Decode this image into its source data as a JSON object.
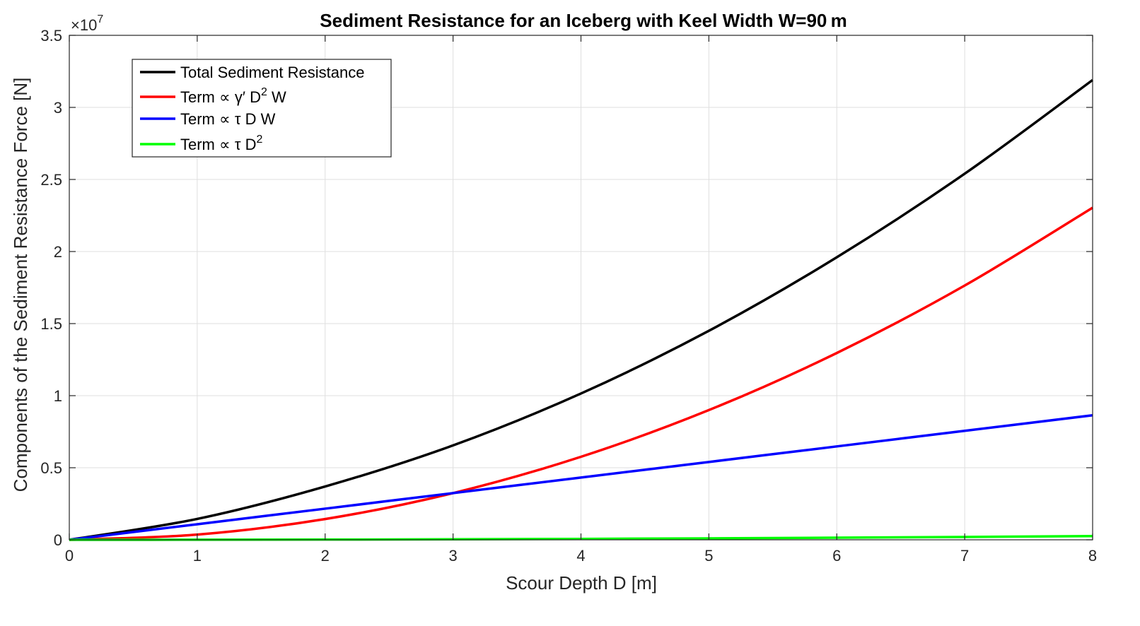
{
  "chart_data": {
    "type": "line",
    "title": "Sediment Resistance for an Iceberg with Keel Width W=90 m",
    "xlabel": "Scour Depth D [m]",
    "ylabel": "Components of the Sediment Resistance Force [N]",
    "y_exponent_label": "×10",
    "y_exponent_power": "7",
    "xlim": [
      0,
      8
    ],
    "ylim": [
      0,
      35000000
    ],
    "xticks": [
      0,
      1,
      2,
      3,
      4,
      5,
      6,
      7,
      8
    ],
    "xtick_labels": [
      "0",
      "1",
      "2",
      "3",
      "4",
      "5",
      "6",
      "7",
      "8"
    ],
    "yticks": [
      0,
      5000000,
      10000000,
      15000000,
      20000000,
      25000000,
      30000000,
      35000000
    ],
    "ytick_labels": [
      "0",
      "0.5",
      "1",
      "1.5",
      "2",
      "2.5",
      "3",
      "3.5"
    ],
    "grid": true,
    "legend_position": "top-left",
    "x": [
      0,
      1,
      2,
      3,
      4,
      5,
      6,
      7,
      8
    ],
    "series": [
      {
        "name": "Total Sediment Resistance",
        "color": "#000000",
        "values": [
          0,
          1450000,
          3700000,
          6550000,
          10150000,
          14500000,
          19600000,
          25400000,
          31900000
        ]
      },
      {
        "name": "Term ∝ γ′ D",
        "name_sup": "2",
        "name_tail": " W",
        "color": "#ff0000",
        "values": [
          0,
          360000,
          1440000,
          3240000,
          5760000,
          9000000,
          12960000,
          17640000,
          23040000
        ]
      },
      {
        "name": "Term ∝ τ D W",
        "color": "#0000ff",
        "values": [
          0,
          1080000,
          2160000,
          3240000,
          4320000,
          5400000,
          6480000,
          7560000,
          8640000
        ]
      },
      {
        "name": "Term ∝ τ D",
        "name_sup": "2",
        "color": "#00ff00",
        "values": [
          0,
          4000,
          16000,
          36000,
          64000,
          100000,
          144000,
          196000,
          256000
        ]
      }
    ]
  }
}
